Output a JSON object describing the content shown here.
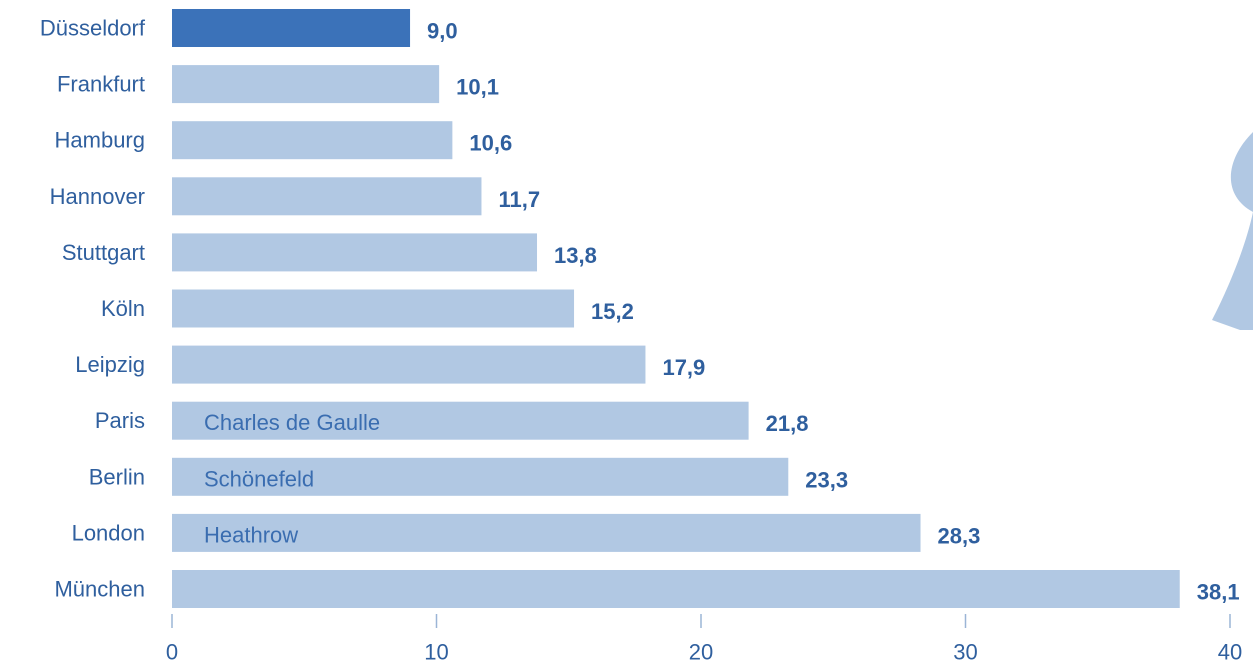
{
  "chart_data": {
    "type": "bar",
    "orientation": "horizontal",
    "categories": [
      "Düsseldorf",
      "Frankfurt",
      "Hamburg",
      "Hannover",
      "Stuttgart",
      "Köln",
      "Leipzig",
      "Paris",
      "Berlin",
      "London",
      "München"
    ],
    "values": [
      9.0,
      10.1,
      10.6,
      11.7,
      13.8,
      15.2,
      17.9,
      21.8,
      23.3,
      28.3,
      38.1
    ],
    "value_labels": [
      "9,0",
      "10,1",
      "10,6",
      "11,7",
      "13,8",
      "15,2",
      "17,9",
      "21,8",
      "23,3",
      "28,3",
      "38,1"
    ],
    "bar_annotations": [
      "",
      "",
      "",
      "",
      "",
      "",
      "",
      "Charles de Gaulle",
      "Schönefeld",
      "Heathrow",
      ""
    ],
    "highlighted_category": "Düsseldorf",
    "xlim": [
      0,
      40
    ],
    "xticks": [
      0,
      10,
      20,
      30,
      40
    ],
    "grid": false,
    "legend": "none"
  },
  "colors": {
    "highlight_bar": "#3b72b9",
    "bar": "#b1c8e3",
    "text": "#2f5f9e",
    "annotation_text": "#3a6db0",
    "axis": "#9bb5d6",
    "decoration": "#b1c8e3"
  }
}
